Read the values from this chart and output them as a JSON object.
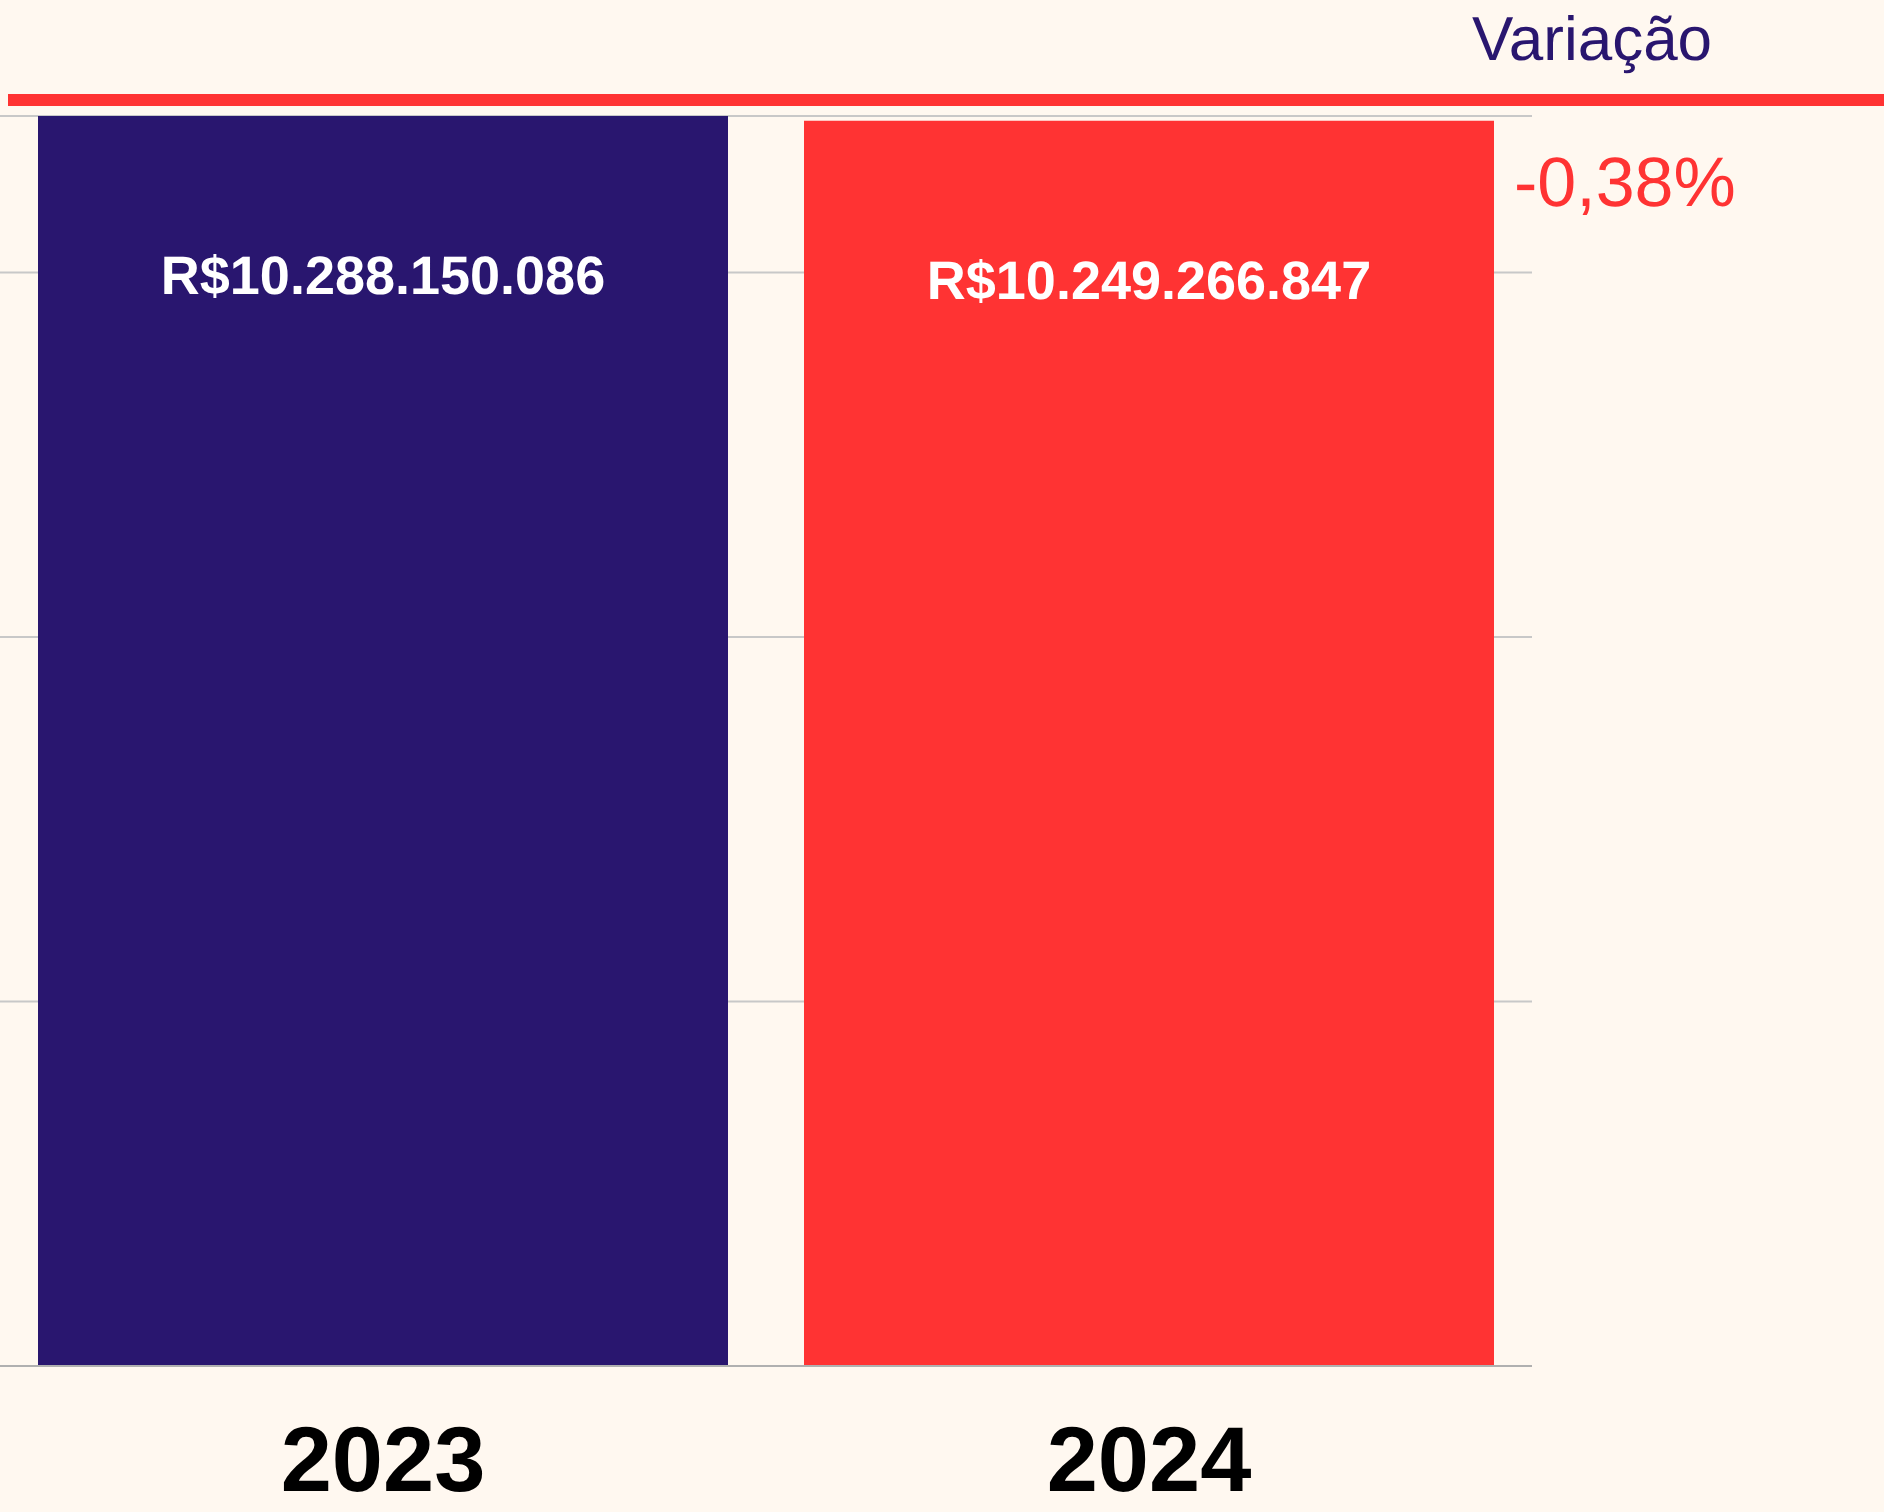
{
  "chart_data": {
    "type": "bar",
    "categories": [
      "2023",
      "2024"
    ],
    "values": [
      10288150086,
      10249266847
    ],
    "colors": [
      "#29166f",
      "#ff3333"
    ],
    "value_labels": [
      "R$10.288.150.086",
      "R$10.249.266.847"
    ],
    "tick_labels": "x",
    "grid": "y",
    "annotations": [
      "Variação",
      "-0,38%"
    ]
  }
}
